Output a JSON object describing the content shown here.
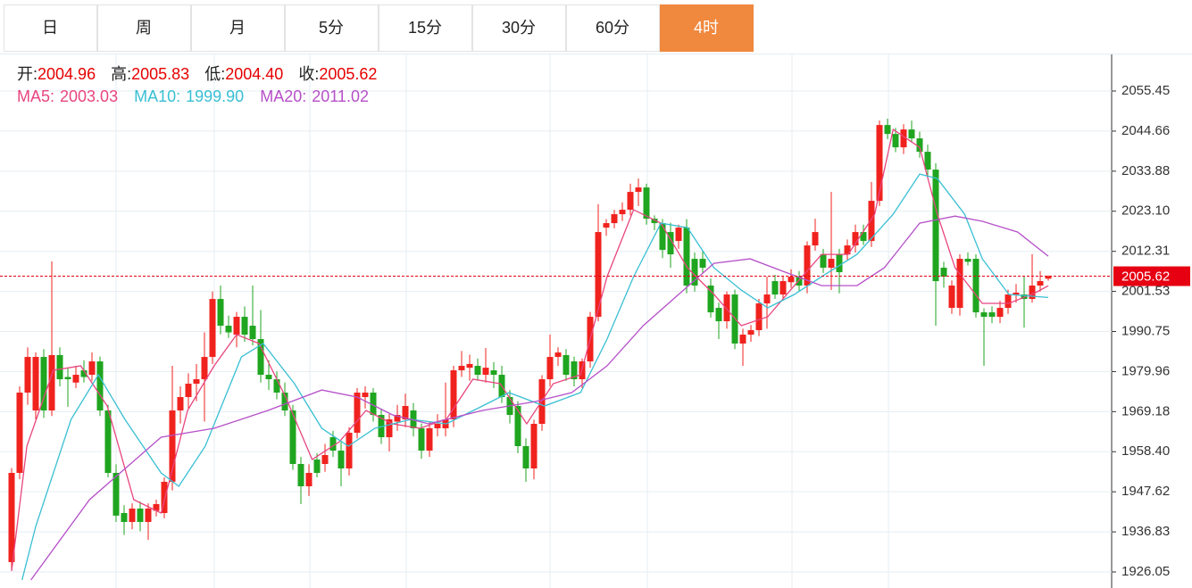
{
  "tabs": [
    "日",
    "周",
    "月",
    "5分",
    "15分",
    "30分",
    "60分",
    "4时"
  ],
  "active_tab": 7,
  "chart_data": {
    "type": "candlestick",
    "ohlc_labels": [
      "开:",
      "高:",
      "低:",
      "收:"
    ],
    "up_color": "#f0221e",
    "down_color": "#1fa51f",
    "candles": [
      [
        1928.7,
        1954.0,
        1926.5,
        1952.7
      ],
      [
        1952.7,
        1976.0,
        1951.0,
        1974.3
      ],
      [
        1974.3,
        1986.5,
        1971.0,
        1983.9
      ],
      [
        1969.5,
        1985.1,
        1967.1,
        1983.9
      ],
      [
        1983.9,
        1986.0,
        1967.5,
        1969.5
      ],
      [
        1969.5,
        2009.6,
        1968.0,
        1984.4
      ],
      [
        1984.4,
        1986.5,
        1976.0,
        1977.9
      ],
      [
        1978.5,
        1981.0,
        1970.5,
        1977.9
      ],
      [
        1977.0,
        1981.5,
        1975.5,
        1979.1
      ],
      [
        1980.3,
        1983.0,
        1977.0,
        1978.5
      ],
      [
        1979.1,
        1985.1,
        1977.5,
        1982.7
      ],
      [
        1982.7,
        1984.0,
        1968.0,
        1969.5
      ],
      [
        1969.5,
        1971.0,
        1951.5,
        1952.7
      ],
      [
        1952.7,
        1955.0,
        1939.5,
        1941.2
      ],
      [
        1941.9,
        1944.0,
        1936.0,
        1939.5
      ],
      [
        1939.5,
        1944.5,
        1937.5,
        1943.1
      ],
      [
        1943.1,
        1945.0,
        1937.0,
        1939.5
      ],
      [
        1939.5,
        1944.5,
        1934.7,
        1943.1
      ],
      [
        1942.5,
        1945.5,
        1941.0,
        1944.3
      ],
      [
        1941.9,
        1951.5,
        1940.5,
        1950.3
      ],
      [
        1950.3,
        1981.5,
        1948.0,
        1969.5
      ],
      [
        1969.5,
        1976.0,
        1966.0,
        1973.1
      ],
      [
        1973.1,
        1979.5,
        1970.0,
        1976.7
      ],
      [
        1976.7,
        1982.0,
        1972.0,
        1977.9
      ],
      [
        1977.9,
        1990.5,
        1966.5,
        1983.9
      ],
      [
        1983.9,
        2001.5,
        1982.0,
        1999.5
      ],
      [
        1999.5,
        2003.1,
        1990.0,
        1992.3
      ],
      [
        1992.3,
        1995.0,
        1989.0,
        1990.5
      ],
      [
        1989.9,
        1996.0,
        1986.5,
        1994.7
      ],
      [
        1994.7,
        1997.5,
        1988.0,
        1989.9
      ],
      [
        1992.3,
        2003.1,
        1987.0,
        1988.7
      ],
      [
        1988.7,
        1996.5,
        1977.0,
        1979.1
      ],
      [
        1979.1,
        1983.0,
        1975.0,
        1977.9
      ],
      [
        1977.9,
        1980.0,
        1972.5,
        1974.3
      ],
      [
        1974.3,
        1977.0,
        1968.0,
        1969.5
      ],
      [
        1969.5,
        1971.0,
        1953.5,
        1955.1
      ],
      [
        1955.1,
        1957.0,
        1944.3,
        1949.1
      ],
      [
        1949.1,
        1955.0,
        1946.5,
        1952.7
      ],
      [
        1956.3,
        1958.0,
        1951.5,
        1952.7
      ],
      [
        1955.1,
        1960.5,
        1953.0,
        1957.5
      ],
      [
        1962.3,
        1964.0,
        1957.0,
        1958.7
      ],
      [
        1958.7,
        1961.0,
        1949.1,
        1953.9
      ],
      [
        1953.9,
        1965.0,
        1952.0,
        1963.5
      ],
      [
        1963.5,
        1975.5,
        1962.0,
        1974.3
      ],
      [
        1973.1,
        1976.0,
        1970.0,
        1974.3
      ],
      [
        1974.3,
        1975.5,
        1966.5,
        1968.3
      ],
      [
        1968.3,
        1970.0,
        1960.5,
        1962.3
      ],
      [
        1962.3,
        1968.5,
        1958.5,
        1967.1
      ],
      [
        1966.5,
        1971.0,
        1964.0,
        1968.3
      ],
      [
        1967.1,
        1974.0,
        1965.0,
        1970.7
      ],
      [
        1969.5,
        1971.5,
        1962.5,
        1964.7
      ],
      [
        1964.7,
        1966.0,
        1956.5,
        1958.7
      ],
      [
        1958.7,
        1966.5,
        1957.0,
        1964.7
      ],
      [
        1964.7,
        1968.5,
        1962.5,
        1965.9
      ],
      [
        1964.7,
        1977.0,
        1962.5,
        1967.1
      ],
      [
        1967.1,
        1981.5,
        1965.0,
        1980.3
      ],
      [
        1980.3,
        1985.5,
        1978.5,
        1981.5
      ],
      [
        1981.0,
        1984.5,
        1977.5,
        1982.0
      ],
      [
        1981.5,
        1983.5,
        1977.5,
        1979.1
      ],
      [
        1979.1,
        1986.3,
        1977.0,
        1981.0
      ],
      [
        1980.3,
        1982.5,
        1975.5,
        1979.1
      ],
      [
        1979.1,
        1981.5,
        1971.5,
        1973.1
      ],
      [
        1973.1,
        1975.0,
        1966.0,
        1968.3
      ],
      [
        1970.7,
        1972.0,
        1958.0,
        1959.9
      ],
      [
        1959.9,
        1962.0,
        1950.3,
        1953.9
      ],
      [
        1953.9,
        1967.0,
        1951.0,
        1965.9
      ],
      [
        1965.9,
        1979.0,
        1964.0,
        1977.9
      ],
      [
        1977.9,
        1989.9,
        1976.0,
        1983.9
      ],
      [
        1983.9,
        1986.5,
        1981.5,
        1985.1
      ],
      [
        1984.4,
        1986.0,
        1977.5,
        1979.1
      ],
      [
        1982.7,
        1984.0,
        1976.0,
        1977.9
      ],
      [
        1977.9,
        1983.5,
        1975.5,
        1982.7
      ],
      [
        1982.7,
        1996.0,
        1981.0,
        1994.7
      ],
      [
        1994.7,
        2025.0,
        1993.5,
        2017.5
      ],
      [
        2018.7,
        2021.0,
        2016.5,
        2019.9
      ],
      [
        2019.9,
        2023.5,
        2018.5,
        2022.3
      ],
      [
        2022.3,
        2025.5,
        2020.5,
        2023.5
      ],
      [
        2023.5,
        2030.5,
        2022.0,
        2028.3
      ],
      [
        2028.3,
        2031.9,
        2024.5,
        2029.5
      ],
      [
        2029.5,
        2030.5,
        2019.5,
        2021.1
      ],
      [
        2021.1,
        2022.0,
        2018.0,
        2019.9
      ],
      [
        2019.9,
        2021.0,
        2010.5,
        2012.7
      ],
      [
        2017.5,
        2020.0,
        2007.9,
        2011.5
      ],
      [
        2015.1,
        2019.5,
        2013.0,
        2018.7
      ],
      [
        2018.7,
        2021.0,
        2001.0,
        2003.1
      ],
      [
        2010.3,
        2012.0,
        2001.5,
        2003.1
      ],
      [
        2010.3,
        2012.5,
        2006.5,
        2007.9
      ],
      [
        2003.1,
        2005.0,
        1994.5,
        1995.9
      ],
      [
        1997.1,
        1998.5,
        1988.7,
        1993.5
      ],
      [
        1993.5,
        2001.5,
        1991.5,
        2000.7
      ],
      [
        2000.7,
        2002.0,
        1986.0,
        1987.5
      ],
      [
        1987.5,
        1991.5,
        1981.5,
        1989.9
      ],
      [
        1989.9,
        1992.5,
        1988.0,
        1991.1
      ],
      [
        1991.1,
        1999.5,
        1989.5,
        1998.3
      ],
      [
        1998.3,
        2005.5,
        1991.5,
        2000.7
      ],
      [
        2004.3,
        2006.0,
        1999.5,
        2000.7
      ],
      [
        2000.7,
        2005.5,
        1999.0,
        2004.3
      ],
      [
        2004.0,
        2007.5,
        2002.5,
        2005.5
      ],
      [
        2005.5,
        2007.0,
        2001.5,
        2003.1
      ],
      [
        2003.1,
        2015.0,
        2001.0,
        2013.9
      ],
      [
        2013.9,
        2021.1,
        2012.5,
        2017.5
      ],
      [
        2011.5,
        2013.0,
        2006.5,
        2007.9
      ],
      [
        2007.9,
        2028.3,
        2001.9,
        2010.3
      ],
      [
        2011.5,
        2013.0,
        2001.0,
        2006.7
      ],
      [
        2011.5,
        2015.5,
        2010.0,
        2013.9
      ],
      [
        2013.9,
        2019.5,
        2012.0,
        2017.5
      ],
      [
        2017.5,
        2019.5,
        2014.0,
        2015.1
      ],
      [
        2015.1,
        2031.0,
        2013.5,
        2025.9
      ],
      [
        2025.9,
        2047.5,
        2024.5,
        2046.3
      ],
      [
        2046.3,
        2048.0,
        2042.5,
        2043.9
      ],
      [
        2043.9,
        2045.5,
        2039.0,
        2040.3
      ],
      [
        2040.3,
        2046.5,
        2038.5,
        2045.1
      ],
      [
        2045.1,
        2047.5,
        2041.5,
        2042.7
      ],
      [
        2042.7,
        2044.5,
        2037.5,
        2039.1
      ],
      [
        2039.1,
        2041.0,
        2032.5,
        2034.3
      ],
      [
        2034.3,
        2036.0,
        1992.3,
        2004.3
      ],
      [
        2007.9,
        2009.5,
        2002.5,
        2005.5
      ],
      [
        1997.1,
        2004.5,
        1995.5,
        2003.1
      ],
      [
        1997.1,
        2011.5,
        1995.0,
        2010.3
      ],
      [
        2010.3,
        2012.0,
        2008.5,
        2009.5
      ],
      [
        2010.3,
        2011.5,
        1994.5,
        1995.9
      ],
      [
        1995.9,
        1997.0,
        1981.5,
        1994.7
      ],
      [
        1995.9,
        1997.5,
        1993.0,
        1994.7
      ],
      [
        1994.7,
        1999.0,
        1993.0,
        1997.1
      ],
      [
        1997.1,
        2002.0,
        1995.5,
        2000.7
      ],
      [
        2000.7,
        2003.5,
        1998.5,
        2001.2
      ],
      [
        2000.7,
        2005.5,
        1991.8,
        1999.5
      ],
      [
        1999.5,
        2011.5,
        1998.5,
        2003.1
      ],
      [
        2003.1,
        2007.0,
        2001.5,
        2004.3
      ],
      [
        2004.96,
        2005.83,
        2004.4,
        2005.62
      ]
    ],
    "value_labels": [
      null,
      null,
      null,
      null,
      null,
      null,
      null,
      null,
      null,
      null,
      null,
      null,
      null,
      null,
      null,
      null,
      null,
      null,
      null,
      null,
      null,
      null,
      null,
      null,
      null,
      null,
      null,
      null,
      null,
      null,
      null,
      null,
      null,
      null,
      null,
      null,
      null,
      null,
      null,
      null,
      null,
      null,
      null,
      null,
      null,
      null,
      null,
      null,
      null,
      null,
      null,
      null,
      null,
      null,
      null,
      null,
      null,
      null,
      null,
      null,
      null,
      null,
      null,
      null,
      null,
      null,
      null,
      null,
      null,
      null,
      null,
      null,
      null,
      null,
      null,
      null,
      null,
      null,
      null,
      null,
      null,
      null,
      null,
      null,
      null,
      null,
      null,
      null,
      null,
      null,
      null,
      null,
      null,
      null,
      null,
      null,
      null,
      null,
      null,
      null,
      null,
      null,
      null,
      null,
      null,
      null,
      null,
      null,
      null,
      null,
      null,
      null,
      null,
      null,
      null,
      null,
      null,
      null,
      null,
      null,
      null,
      null,
      null,
      null,
      null,
      null,
      null,
      null,
      null,
      [
        "2004.96",
        "2005.83",
        "2004.40",
        "2005.62"
      ]
    ],
    "series": [
      {
        "name": "MA5:",
        "color": "#e8457f",
        "x": [
          0,
          1.9,
          5.2,
          8.6,
          11.9,
          15.2,
          18.6,
          21.9,
          25.2,
          28,
          30.8,
          34.1,
          37.4,
          40.8,
          44.1,
          47.4,
          50.8,
          54.1,
          57.4,
          60.8,
          64.1,
          67.4,
          70.8,
          74.1,
          77.4,
          80.8,
          84.1,
          87.4,
          90.8,
          94.1,
          97.4,
          100.8,
          104.1,
          107.4,
          109.7,
          113,
          115.2,
          117.4,
          120.8,
          124.1,
          127.4,
          129
        ],
        "values": [
          1926.3,
          1959.9,
          1980.3,
          1981.5,
          1970.7,
          1945.5,
          1941.9,
          1969.5,
          1981.5,
          1989.9,
          1987.5,
          1973.1,
          1956.3,
          1961.1,
          1969.5,
          1965.9,
          1964.7,
          1967.1,
          1977.9,
          1976.7,
          1965.9,
          1976.7,
          1979.1,
          2005.5,
          2023.5,
          2019.9,
          2007.9,
          2000.7,
          1992.3,
          1994.7,
          2003.1,
          2011.5,
          2011.5,
          2022.3,
          2045.1,
          2040.3,
          2022.3,
          2007.9,
          1998.3,
          1998.3,
          2001.2,
          2003.03
        ],
        "value_labels": [
          null,
          null,
          null,
          null,
          null,
          null,
          null,
          null,
          null,
          null,
          null,
          null,
          null,
          null,
          null,
          null,
          null,
          null,
          null,
          null,
          null,
          null,
          null,
          null,
          null,
          null,
          null,
          null,
          null,
          null,
          null,
          null,
          null,
          null,
          null,
          null,
          null,
          null,
          null,
          null,
          null,
          "2003.03"
        ]
      },
      {
        "name": "MA10:",
        "color": "#38bfd3",
        "x": [
          1.3,
          3,
          7.4,
          10.8,
          14.1,
          18.6,
          20.8,
          24.1,
          28.6,
          31.3,
          35.2,
          38.6,
          41.9,
          45.2,
          49.7,
          54.1,
          58.6,
          61.9,
          66.3,
          70.8,
          74.1,
          77.4,
          80.8,
          84.1,
          87.4,
          90.8,
          94.1,
          97.4,
          100.8,
          105.2,
          109.7,
          113,
          115.2,
          118.6,
          120.8,
          124.1,
          129
        ],
        "values": [
          1923.9,
          1938.3,
          1967.1,
          1979.1,
          1967.1,
          1952.7,
          1949.1,
          1959.9,
          1983.9,
          1987.5,
          1976.7,
          1964.7,
          1959.9,
          1964.7,
          1967.1,
          1965.9,
          1970.7,
          1974.3,
          1970.7,
          1974.3,
          1988.7,
          2005.5,
          2019.9,
          2018.7,
          2007.9,
          2001.9,
          1997.1,
          2000.7,
          2005.5,
          2011.5,
          2022.3,
          2033.1,
          2031.9,
          2022.3,
          2010.3,
          2000.7,
          1999.9
        ],
        "value_labels": [
          null,
          null,
          null,
          null,
          null,
          null,
          null,
          null,
          null,
          null,
          null,
          null,
          null,
          null,
          null,
          null,
          null,
          null,
          null,
          null,
          null,
          null,
          null,
          null,
          null,
          null,
          null,
          null,
          null,
          null,
          null,
          null,
          null,
          null,
          null,
          null,
          "1999.90"
        ]
      },
      {
        "name": "MA20:",
        "color": "#b550c8",
        "x": [
          2.4,
          9.7,
          18.6,
          25.2,
          31.9,
          38.6,
          43,
          47.4,
          51.9,
          58.6,
          65.2,
          69.7,
          74.1,
          78.6,
          83,
          87.4,
          91.9,
          96.3,
          100.8,
          105.2,
          108.6,
          113,
          117.4,
          120.8,
          125.2,
          129
        ],
        "values": [
          1923.9,
          1945.5,
          1962.3,
          1964.7,
          1969.5,
          1975.0,
          1973.1,
          1968.3,
          1965.9,
          1969.5,
          1971.9,
          1974.3,
          1981.5,
          1992.3,
          2000.7,
          2009.1,
          2010.3,
          2006.7,
          2003.1,
          2003.1,
          2007.9,
          2019.9,
          2021.8,
          2020.4,
          2017.5,
          2011.02
        ],
        "value_labels": [
          null,
          null,
          null,
          null,
          null,
          null,
          null,
          null,
          null,
          null,
          null,
          null,
          null,
          null,
          null,
          null,
          null,
          null,
          null,
          null,
          null,
          null,
          null,
          null,
          null,
          "2011.02"
        ]
      }
    ],
    "ylim": [
      1921.73,
      2065.53
    ],
    "yticks": [
      2055.45,
      2044.66,
      2033.88,
      {
        "value": 2023.1,
        "label": "2023.10"
      },
      2012.31,
      2001.53,
      1990.75,
      1979.96,
      1969.18,
      {
        "value": 1958.4,
        "label": "1958.40"
      },
      1947.62,
      1936.83,
      1926.05
    ],
    "grid": true,
    "last_price_line": true
  }
}
